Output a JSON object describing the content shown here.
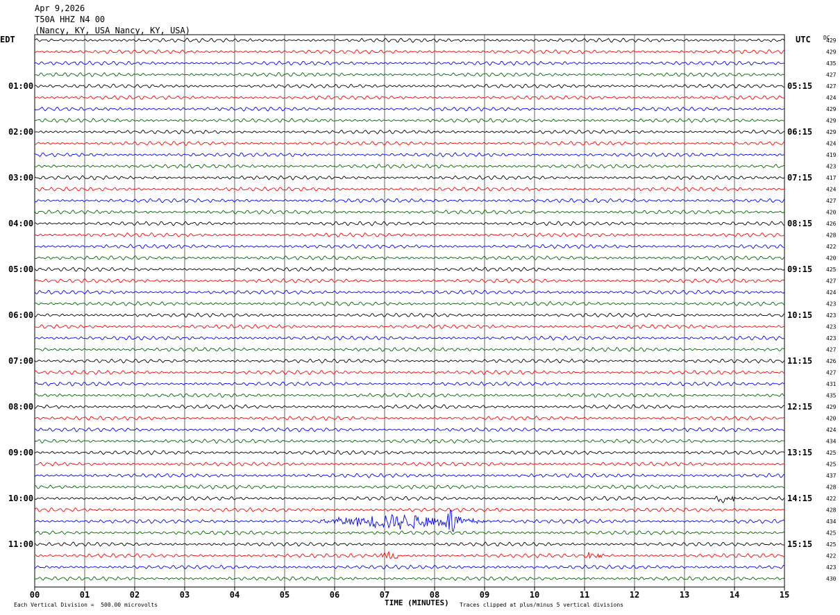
{
  "header": {
    "date": "Apr 9,2026",
    "station": "T50A HHZ N4 00",
    "location": "(Nancy, KY, USA Nancy, KY, USA)"
  },
  "left_tz": "EDT",
  "right_tz": "UTC",
  "dc_header": "DC",
  "footer": {
    "scale_note": "Each Vertical Division =  500.00 microvolts",
    "xaxis_title": "TIME (MINUTES)",
    "clip_note": "Traces clipped at plus/minus 5 vertical divisions"
  },
  "colors": {
    "cycle": [
      "#000000",
      "#ff0000",
      "#0000ff",
      "#006400"
    ],
    "grid": "#000000"
  },
  "chart_data": {
    "type": "line",
    "title": "",
    "xlabel": "TIME (MINUTES)",
    "ylabel": "",
    "xlim": [
      0,
      15
    ],
    "x_ticks": [
      "00",
      "01",
      "02",
      "03",
      "04",
      "05",
      "06",
      "07",
      "08",
      "09",
      "10",
      "11",
      "12",
      "13",
      "14",
      "15"
    ],
    "rows_per_hour": 4,
    "left_time_labels": [
      {
        "row": 4,
        "label": "01:00"
      },
      {
        "row": 8,
        "label": "02:00"
      },
      {
        "row": 12,
        "label": "03:00"
      },
      {
        "row": 16,
        "label": "04:00"
      },
      {
        "row": 20,
        "label": "05:00"
      },
      {
        "row": 24,
        "label": "06:00"
      },
      {
        "row": 28,
        "label": "07:00"
      },
      {
        "row": 32,
        "label": "08:00"
      },
      {
        "row": 36,
        "label": "09:00"
      },
      {
        "row": 40,
        "label": "10:00"
      },
      {
        "row": 44,
        "label": "11:00"
      }
    ],
    "right_time_labels": [
      {
        "row": 4,
        "label": "05:15"
      },
      {
        "row": 8,
        "label": "06:15"
      },
      {
        "row": 12,
        "label": "07:15"
      },
      {
        "row": 16,
        "label": "08:15"
      },
      {
        "row": 20,
        "label": "09:15"
      },
      {
        "row": 24,
        "label": "10:15"
      },
      {
        "row": 28,
        "label": "11:15"
      },
      {
        "row": 32,
        "label": "12:15"
      },
      {
        "row": 36,
        "label": "13:15"
      },
      {
        "row": 40,
        "label": "14:15"
      },
      {
        "row": 44,
        "label": "15:15"
      }
    ],
    "dc_offsets": [
      "429",
      "429",
      "435",
      "427",
      "427",
      "424",
      "429",
      "429",
      "429",
      "424",
      "419",
      "423",
      "417",
      "424",
      "427",
      "420",
      "426",
      "428",
      "422",
      "420",
      "425",
      "427",
      "424",
      "423",
      "423",
      "423",
      "423",
      "427",
      "426",
      "427",
      "431",
      "435",
      "429",
      "420",
      "424",
      "434",
      "425",
      "425",
      "437",
      "428",
      "422",
      "428",
      "434",
      "425",
      "425",
      "422",
      "423",
      "430"
    ],
    "events": [
      {
        "row": 40,
        "start_min": 13.6,
        "end_min": 14.2,
        "amplitude": 1.6
      },
      {
        "row": 42,
        "start_min": 5.6,
        "end_min": 10.2,
        "amplitude": 2.2,
        "peaks": [
          {
            "min": 7.35,
            "amp": 4.5
          },
          {
            "min": 8.35,
            "amp": 7.0
          }
        ]
      },
      {
        "row": 45,
        "start_min": 6.9,
        "end_min": 7.5,
        "amplitude": 1.3
      },
      {
        "row": 45,
        "start_min": 11.0,
        "end_min": 11.5,
        "amplitude": 1.4
      }
    ]
  }
}
